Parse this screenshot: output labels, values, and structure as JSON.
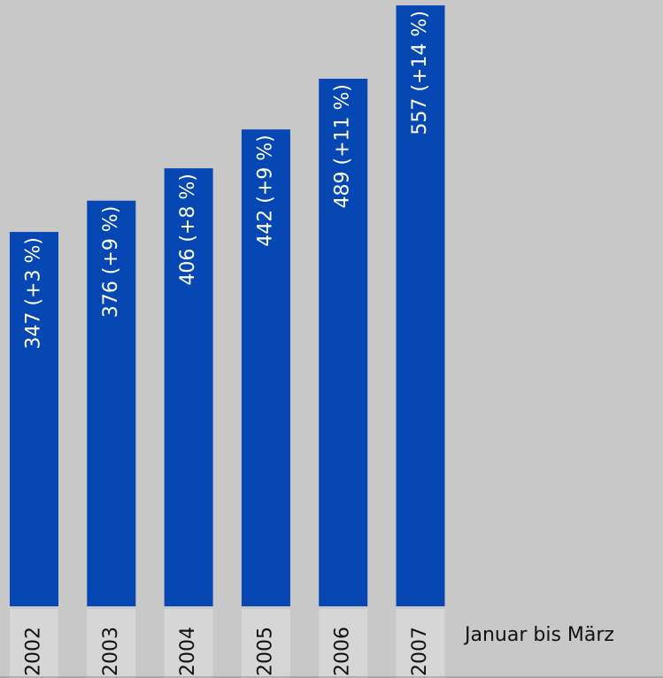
{
  "chart_data": {
    "type": "bar",
    "categories": [
      "2002",
      "2003",
      "2004",
      "2005",
      "2006",
      "2007"
    ],
    "values": [
      347,
      376,
      406,
      442,
      489,
      557
    ],
    "value_labels": [
      "347 (+3 %)",
      "376 (+9 %)",
      "406 (+8 %)",
      "442 (+9 %)",
      "489 (+11 %)",
      "557 (+14 %)"
    ],
    "color": "#0747b4",
    "ylim": [
      0,
      562
    ],
    "annotation": "Januar bis März"
  }
}
